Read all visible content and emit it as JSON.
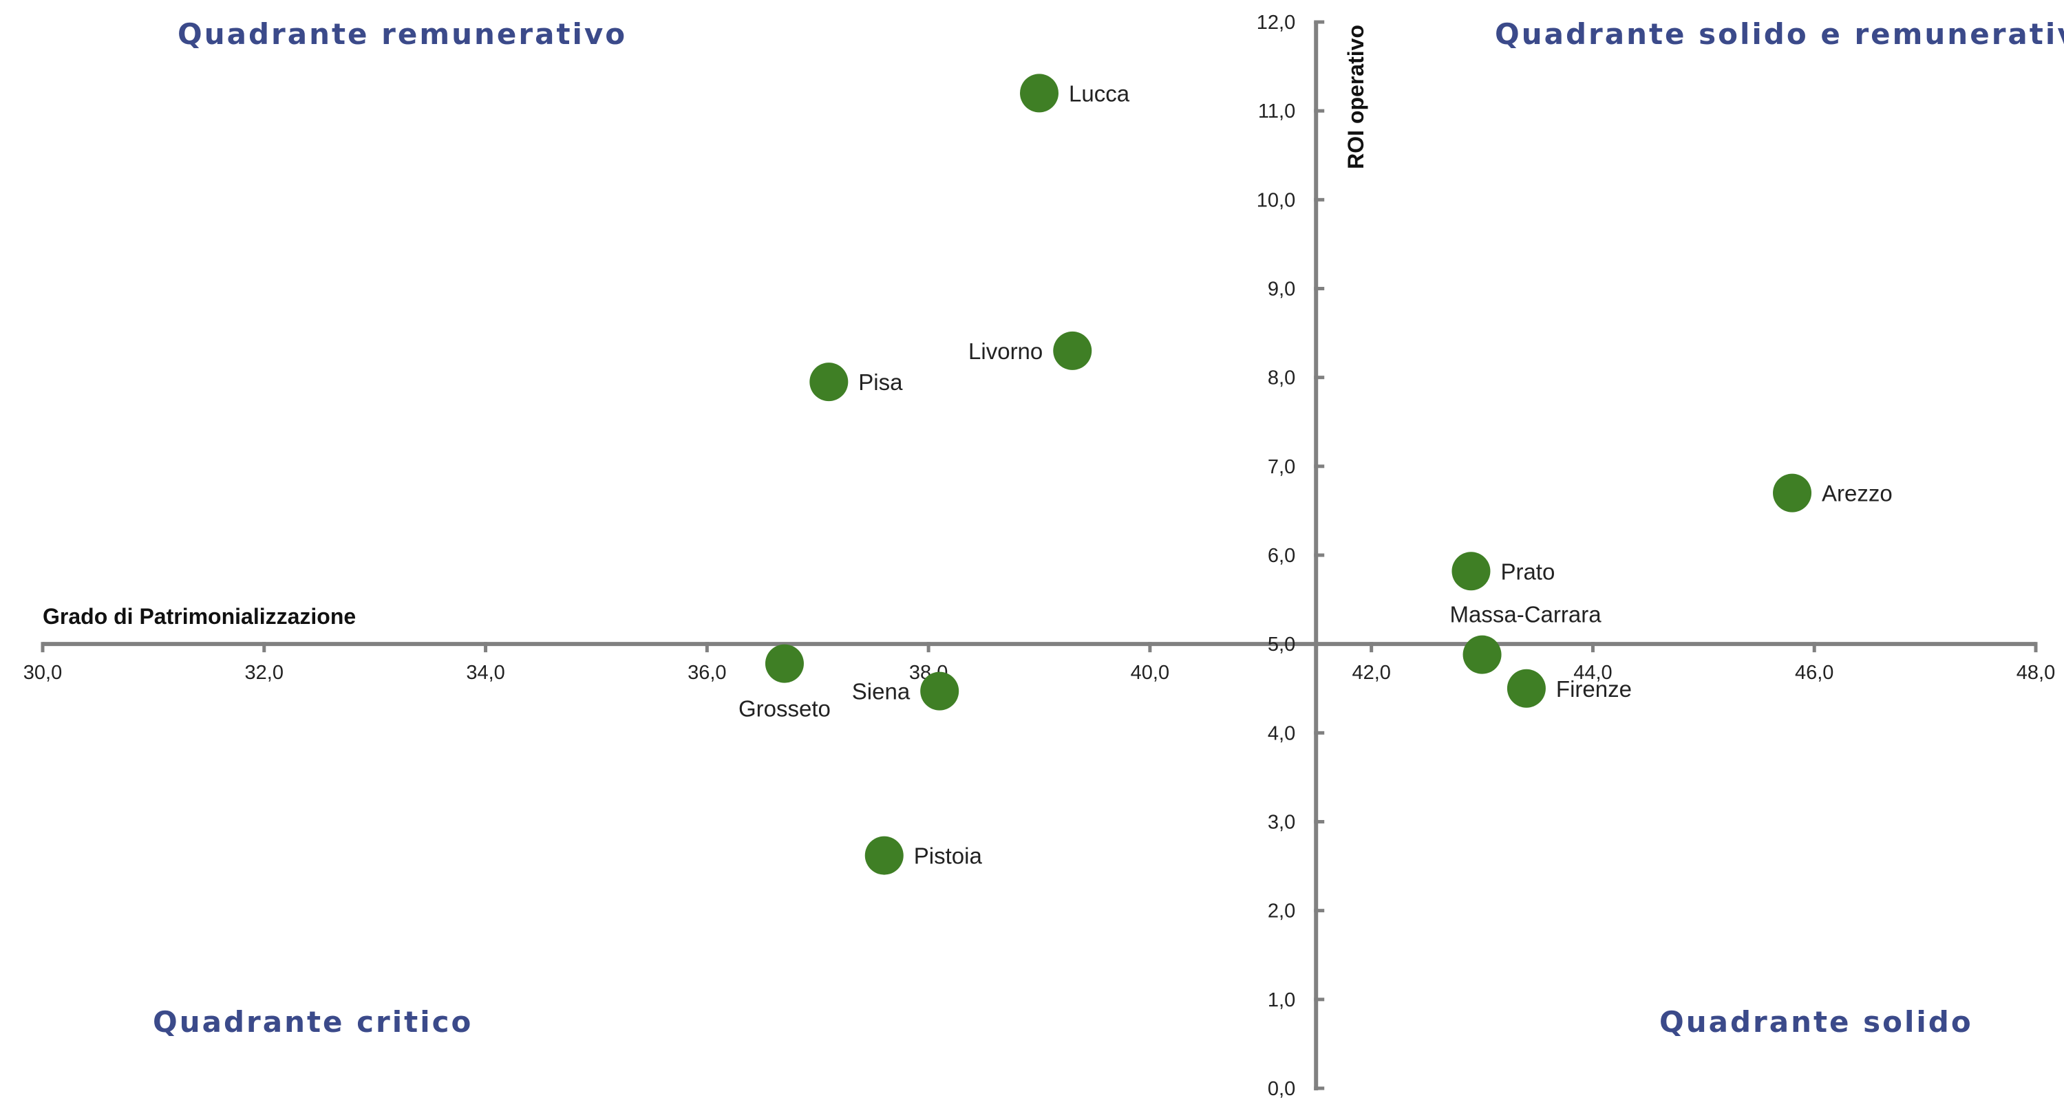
{
  "chart_data": {
    "type": "scatter",
    "xlabel": "Grado di Patrimonializzazione",
    "ylabel": "ROI operativo",
    "xlim": [
      30,
      48
    ],
    "ylim": [
      0,
      12
    ],
    "x_ticks": [
      30,
      32,
      34,
      36,
      38,
      40,
      42,
      44,
      46,
      48
    ],
    "y_ticks": [
      0,
      1,
      2,
      3,
      4,
      5,
      6,
      7,
      8,
      9,
      10,
      11,
      12
    ],
    "x_tick_labels": [
      "30,0",
      "32,0",
      "34,0",
      "36,0",
      "38,0",
      "40,0",
      "42,0",
      "44,0",
      "46,0",
      "48,0"
    ],
    "y_tick_labels": [
      "0,0",
      "1,0",
      "2,0",
      "3,0",
      "4,0",
      "5,0",
      "6,0",
      "7,0",
      "8,0",
      "9,0",
      "10,0",
      "11,0",
      "12,0"
    ],
    "x_axis_crossing_y": 5.0,
    "y_axis_crossing_x": 41.5,
    "grid": false,
    "point_color": "#3f7f25",
    "axis_color": "#808080",
    "quadrant_color": "#3b4a8a",
    "quadrants": [
      {
        "id": "top-left",
        "label": "Quadrante remunerativo"
      },
      {
        "id": "top-right",
        "label": "Quadrante solido e remunerativo"
      },
      {
        "id": "bottom-left",
        "label": "Quadrante critico"
      },
      {
        "id": "bottom-right",
        "label": "Quadrante solido"
      }
    ],
    "points": [
      {
        "name": "Lucca",
        "x": 39.0,
        "y": 11.2,
        "label_pos": "right"
      },
      {
        "name": "Livorno",
        "x": 39.3,
        "y": 8.3,
        "label_pos": "left"
      },
      {
        "name": "Pisa",
        "x": 37.1,
        "y": 7.95,
        "label_pos": "right"
      },
      {
        "name": "Arezzo",
        "x": 45.8,
        "y": 6.7,
        "label_pos": "right"
      },
      {
        "name": "Prato",
        "x": 42.9,
        "y": 5.82,
        "label_pos": "right"
      },
      {
        "name": "Massa-Carrara",
        "x": 43.0,
        "y": 4.88,
        "label_pos": "above"
      },
      {
        "name": "Firenze",
        "x": 43.4,
        "y": 4.5,
        "label_pos": "right"
      },
      {
        "name": "Grosseto",
        "x": 36.7,
        "y": 4.78,
        "label_pos": "below"
      },
      {
        "name": "Siena",
        "x": 38.1,
        "y": 4.47,
        "label_pos": "left"
      },
      {
        "name": "Pistoia",
        "x": 37.6,
        "y": 2.62,
        "label_pos": "right"
      }
    ]
  }
}
